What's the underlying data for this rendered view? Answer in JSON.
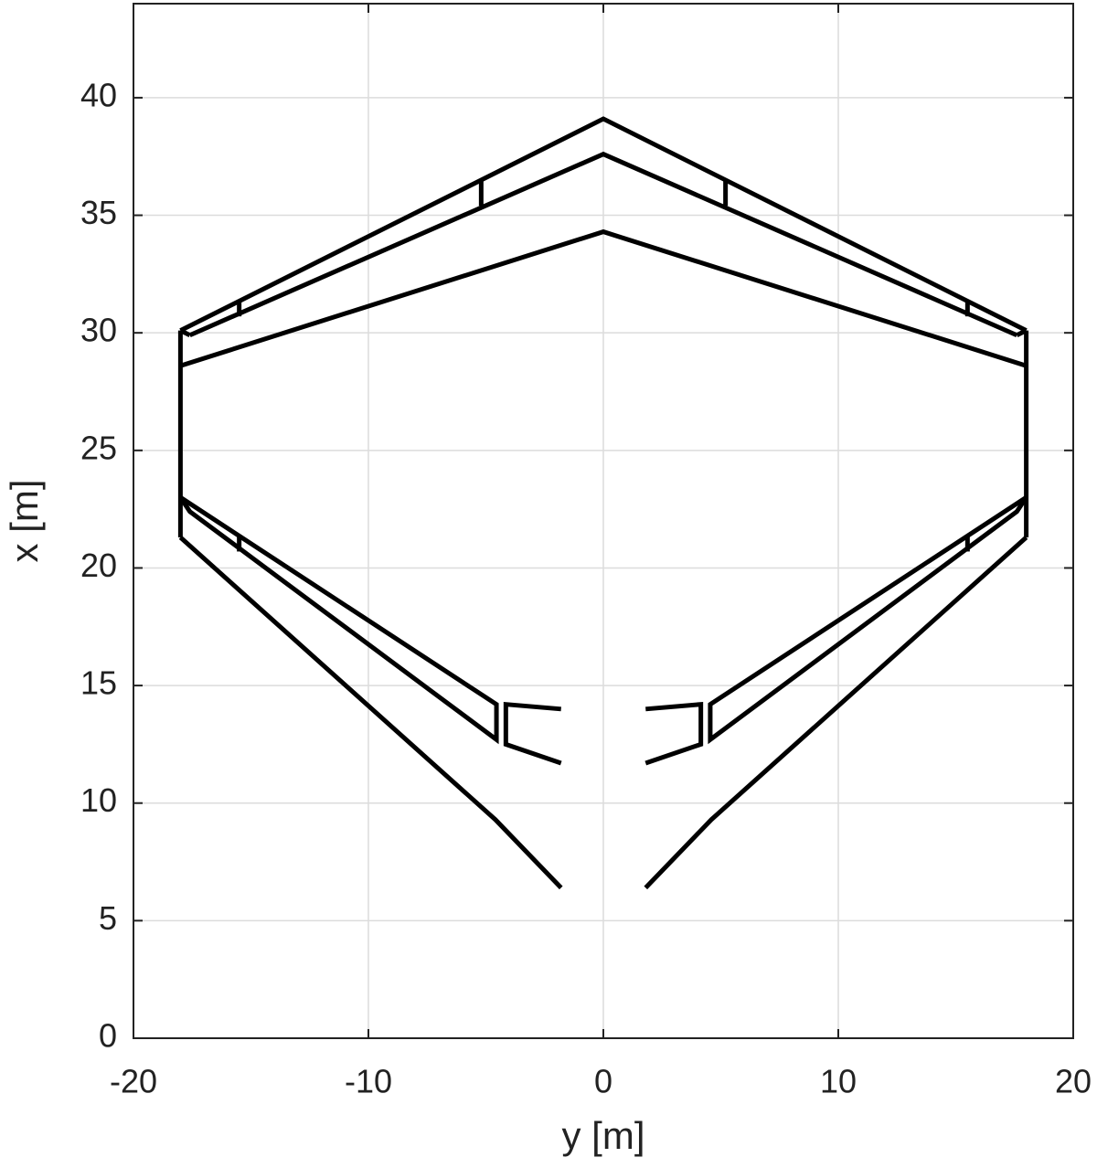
{
  "chart_data": {
    "type": "line",
    "xlabel": "y [m]",
    "ylabel": "x [m]",
    "xlim": [
      -20,
      20
    ],
    "xticks": [
      -20,
      -10,
      0,
      10,
      20
    ],
    "ylim": [
      0,
      44
    ],
    "yticks": [
      0,
      5,
      10,
      15,
      20,
      25,
      30,
      35,
      40
    ],
    "grid": true,
    "color": "#000000",
    "series": [
      {
        "x": [
          -18,
          0,
          18
        ],
        "values": [
          30.1,
          39.1,
          30.1
        ]
      },
      {
        "x": [
          -17.6,
          0,
          17.6
        ],
        "values": [
          29.9,
          37.6,
          29.9
        ]
      },
      {
        "x": [
          -18,
          0,
          18
        ],
        "values": [
          28.6,
          34.3,
          28.6
        ]
      },
      {
        "x": [
          -18,
          -18
        ],
        "values": [
          30.1,
          21.3
        ]
      },
      {
        "x": [
          18,
          18
        ],
        "values": [
          30.1,
          21.3
        ]
      },
      {
        "x": [
          -18,
          -17.6
        ],
        "values": [
          30.1,
          29.9
        ]
      },
      {
        "x": [
          18,
          17.6
        ],
        "values": [
          30.1,
          29.9
        ]
      },
      {
        "x": [
          -5.2,
          -5.2
        ],
        "values": [
          36.5,
          35.4
        ]
      },
      {
        "x": [
          5.2,
          5.2
        ],
        "values": [
          36.5,
          35.4
        ]
      },
      {
        "x": [
          -15.5,
          -15.5
        ],
        "values": [
          31.3,
          30.7
        ]
      },
      {
        "x": [
          15.5,
          15.5
        ],
        "values": [
          31.3,
          30.7
        ]
      },
      {
        "x": [
          -18,
          -4.55,
          -4.55,
          -17.6,
          -18
        ],
        "values": [
          23.0,
          14.2,
          12.7,
          22.4,
          23.0
        ]
      },
      {
        "x": [
          18,
          4.55,
          4.55,
          17.6,
          18
        ],
        "values": [
          23.0,
          14.2,
          12.7,
          22.4,
          23.0
        ]
      },
      {
        "x": [
          -15.5,
          -15.5
        ],
        "values": [
          21.4,
          20.7
        ]
      },
      {
        "x": [
          15.5,
          15.5
        ],
        "values": [
          21.4,
          20.7
        ]
      },
      {
        "x": [
          -1.8,
          -4.15,
          -4.15,
          -1.8
        ],
        "values": [
          14.0,
          14.2,
          12.5,
          11.7
        ]
      },
      {
        "x": [
          1.8,
          4.15,
          4.15,
          1.8
        ],
        "values": [
          14.0,
          14.2,
          12.5,
          11.7
        ]
      },
      {
        "x": [
          -18,
          -4.6,
          -1.8
        ],
        "values": [
          21.3,
          9.3,
          6.4
        ]
      },
      {
        "x": [
          18,
          4.6,
          1.8
        ],
        "values": [
          21.3,
          9.3,
          6.4
        ]
      }
    ]
  }
}
